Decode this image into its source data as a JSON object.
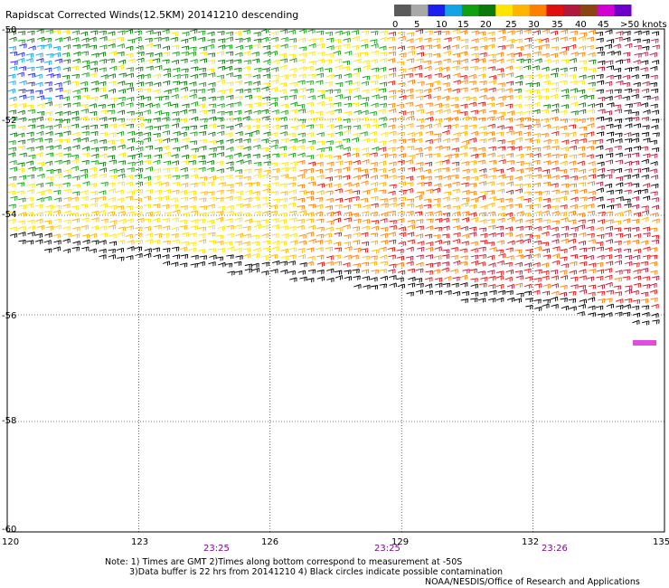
{
  "title": "Rapidscat Corrected Winds(12.5KM) 20141210 descending",
  "legend": {
    "colors": [
      "#5a5a5a",
      "#a8a8a8",
      "#1e1ef0",
      "#16a2e6",
      "#10a010",
      "#0a7a0a",
      "#ffe400",
      "#ffb400",
      "#ff8000",
      "#e01010",
      "#b0183c",
      "#8b4513",
      "#d200d2",
      "#6e00c8"
    ],
    "labels": [
      "0",
      "5",
      "10",
      "15",
      "20",
      "25",
      "30",
      "35",
      "40",
      "45",
      ">50 knots"
    ]
  },
  "map": {
    "lon_min": 120,
    "lon_max": 135,
    "lat_top": -50,
    "lat_bottom": -60,
    "lon_ticks": [
      "120",
      "123",
      "126",
      "129",
      "132",
      "135"
    ],
    "lat_ticks": [
      "-50",
      "-52",
      "-54",
      "-56",
      "-58",
      "-60"
    ],
    "pass_times": [
      "23:25",
      "23:25",
      "23:26"
    ]
  },
  "notes": {
    "line1": "Note: 1) Times are GMT 2)Times along bottom correspond to measurement at -50S",
    "line2": "3)Data buffer is 22 hrs from 20141210 4) Black circles indicate possible contamination",
    "credit": "NOAA/NESDIS/Office of Research and Applications"
  }
}
